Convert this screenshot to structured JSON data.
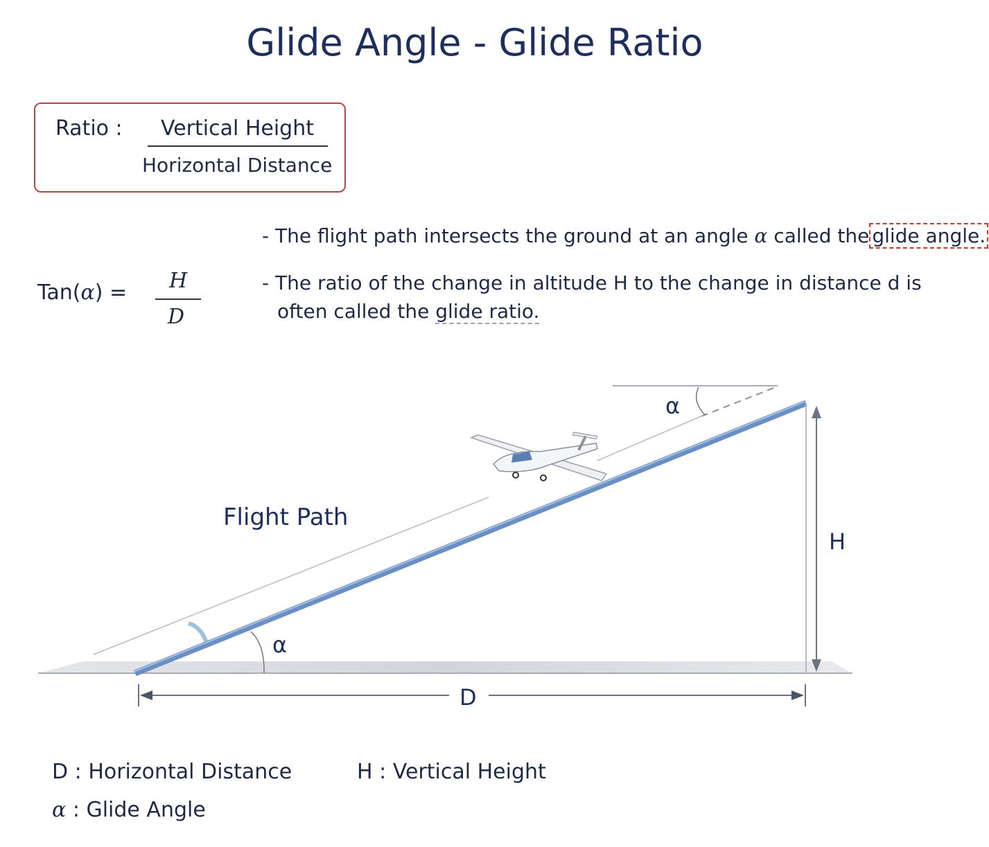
{
  "title": "Glide Angle - Glide Ratio",
  "ratio_box": {
    "label": "Ratio :",
    "numerator": "Vertical Height",
    "denominator": "Horizontal Distance",
    "border_color": "#b94545"
  },
  "formula": {
    "lhs_prefix": "Tan(",
    "symbol": "α",
    "lhs_suffix": ") =",
    "numerator": "H",
    "denominator": "D"
  },
  "bullets": [
    {
      "dash": "-",
      "text_before": "The flight path intersects the ground at an angle",
      "symbol": "α",
      "text_middle": "called the",
      "highlight": "glide angle."
    },
    {
      "dash": "-",
      "line1": "The ratio of the change in altitude H to the change in distance d is",
      "line2_before": "often called the",
      "highlight": "glide ratio."
    }
  ],
  "diagram": {
    "flight_path_label": "Flight Path",
    "alpha_ground": "α",
    "alpha_top": "α",
    "height_label": "H",
    "distance_label": "D",
    "path_color": "#6a8fc4",
    "ground_color": "#d3d6dc",
    "icons": [
      "glider-icon"
    ]
  },
  "legend": [
    {
      "key": "D",
      "sep": ":",
      "text": "Horizontal Distance"
    },
    {
      "key": "H",
      "sep": ":",
      "text": "Vertical Height"
    },
    {
      "key": "α",
      "sep": ":",
      "text": "Glide Angle"
    }
  ]
}
